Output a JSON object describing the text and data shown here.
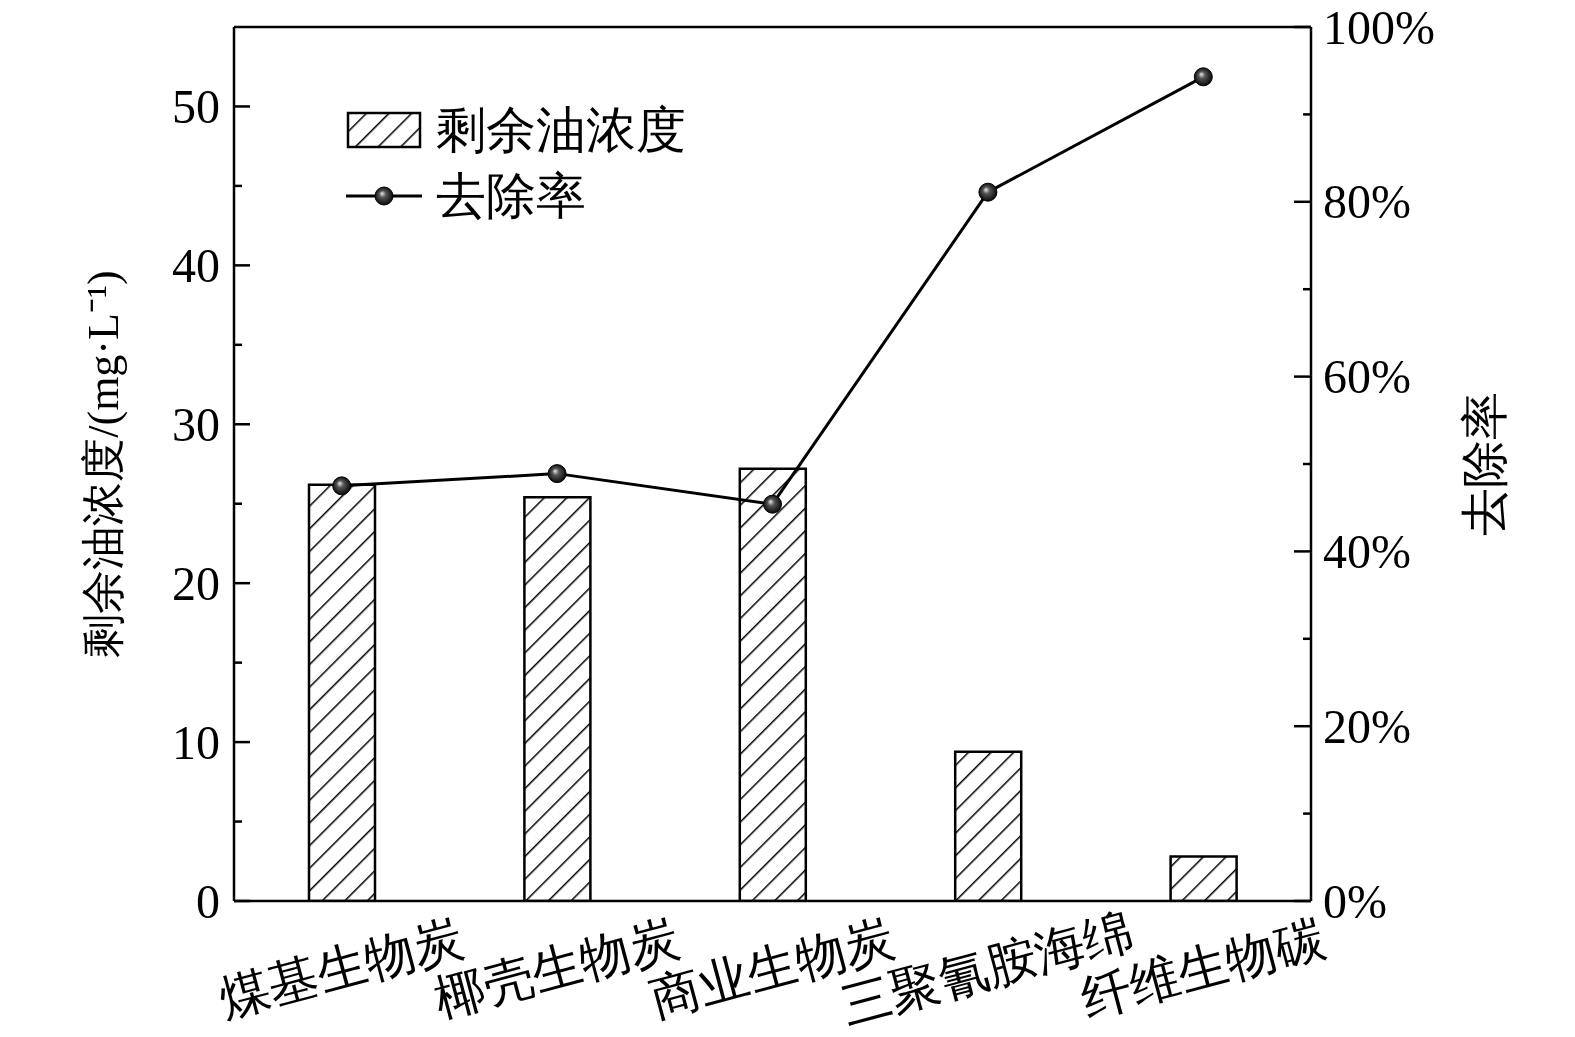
{
  "chart_data": {
    "type": "bar",
    "categories": [
      "煤基生物炭",
      "椰壳生物炭",
      "商业生物炭",
      "三聚氰胺海绵",
      "纤维生物碳"
    ],
    "ylabel": "剩余油浓度/(mg·L⁻¹)",
    "y2label": "去除率",
    "ylim": [
      0,
      55
    ],
    "yticks": [
      0,
      {
        "value": 5,
        "label": null
      },
      10,
      {
        "value": 15,
        "label": null
      },
      20,
      {
        "value": 25,
        "label": null
      },
      30,
      {
        "value": 35,
        "label": null
      },
      40,
      {
        "value": 45,
        "label": null
      },
      50
    ],
    "y2lim": [
      0,
      100
    ],
    "y2ticks": [
      {
        "value": 0,
        "label": "0%"
      },
      {
        "value": 10,
        "label": null
      },
      {
        "value": 20,
        "label": "20%"
      },
      {
        "value": 30,
        "label": null
      },
      {
        "value": 40,
        "label": "40%"
      },
      {
        "value": 50,
        "label": null
      },
      {
        "value": 60,
        "label": "60%"
      },
      {
        "value": 70,
        "label": null
      },
      {
        "value": 80,
        "label": "80%"
      },
      {
        "value": 90,
        "label": null
      },
      {
        "value": 100,
        "label": "100%"
      }
    ],
    "series": [
      {
        "name": "剩余油浓度",
        "color": "#000000",
        "values": [
          26.2,
          25.4,
          27.2,
          9.4,
          2.8
        ]
      },
      {
        "name": "去除率",
        "type": "line",
        "axis": "y2",
        "color": "#000000",
        "values": [
          47.5,
          48.9,
          45.4,
          81.1,
          94.3
        ]
      }
    ],
    "legend": "top left",
    "marker": "circle",
    "line_style": "solid"
  }
}
